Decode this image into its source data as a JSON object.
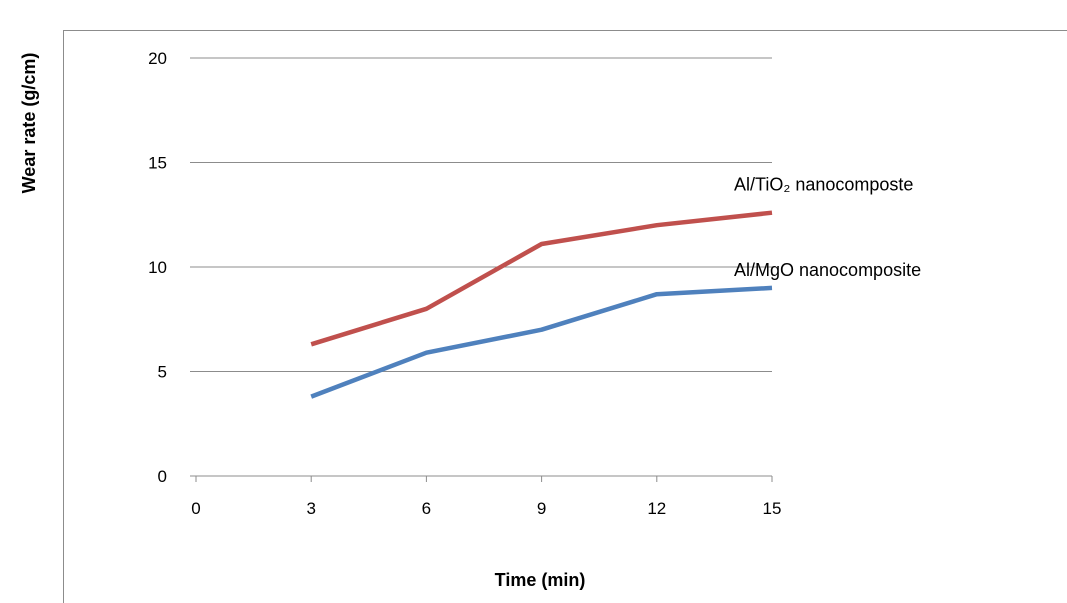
{
  "chart_data": {
    "type": "line",
    "xlabel": "Time (min)",
    "ylabel": "Wear rate (g/cm)",
    "x_ticks": [
      "0",
      "3",
      "6",
      "9",
      "12",
      "15"
    ],
    "y_ticks": [
      "0",
      "5",
      "10",
      "15",
      "20"
    ],
    "xlim": [
      0,
      15
    ],
    "ylim": [
      0,
      20
    ],
    "grid": "horizontal",
    "x": [
      3,
      6,
      9,
      12,
      15
    ],
    "series": [
      {
        "name": "Al/TiO₂ nanocomposte",
        "color": "#C0504D",
        "values": [
          6.3,
          8.0,
          11.1,
          12.0,
          12.6
        ]
      },
      {
        "name": "Al/MgO nanocomposite",
        "color": "#4F81BD",
        "values": [
          3.8,
          5.9,
          7.0,
          8.7,
          9.0
        ]
      }
    ]
  }
}
